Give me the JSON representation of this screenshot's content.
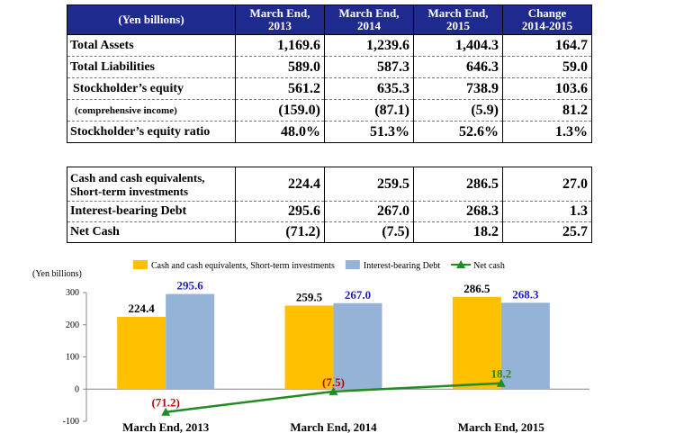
{
  "table1": {
    "headers": [
      "(Yen billions)",
      "March End,\n2013",
      "March End,\n2014",
      "March End,\n2015",
      "Change\n2014-2015"
    ],
    "rows": [
      {
        "label": "Total Assets",
        "values": [
          "1,169.6",
          "1,239.6",
          "1,404.3",
          "164.7"
        ]
      },
      {
        "label": "Total Liabilities",
        "values": [
          "589.0",
          "587.3",
          "646.3",
          "59.0"
        ]
      },
      {
        "label": "Stockholder’s equity",
        "values": [
          "561.2",
          "635.3",
          "738.9",
          "103.6"
        ]
      },
      {
        "label": "(comprehensive income)",
        "values": [
          "(159.0)",
          "(87.1)",
          "(5.9)",
          "81.2"
        ]
      },
      {
        "label": "Stockholder’s equity ratio",
        "values": [
          "48.0%",
          "51.3%",
          "52.6%",
          "1.3%"
        ]
      }
    ]
  },
  "table2": {
    "rows": [
      {
        "label": "Cash and cash equivalents,\nShort-term investments",
        "values": [
          "224.4",
          "259.5",
          "286.5",
          "27.0"
        ]
      },
      {
        "label": "Interest-bearing Debt",
        "values": [
          "295.6",
          "267.0",
          "268.3",
          "1.3"
        ]
      },
      {
        "label": "Net Cash",
        "values": [
          "(71.2)",
          "(7.5)",
          "18.2",
          "25.7"
        ]
      }
    ]
  },
  "chart_data": {
    "type": "bar",
    "ylabel": "(Yen billions)",
    "ylim": [
      -100,
      300
    ],
    "yticks": [
      "300",
      "200",
      "100",
      "0",
      "-100"
    ],
    "categories": [
      "March End, 2013",
      "March End, 2014",
      "March End, 2015"
    ],
    "series": [
      {
        "name": "Cash and cash equivalents,  Short-term investments",
        "type": "bar",
        "color": "#ffc000",
        "values": [
          224.4,
          259.5,
          286.5
        ],
        "labels": [
          "224.4",
          "259.5",
          "286.5"
        ],
        "label_color": "#000000"
      },
      {
        "name": "Interest-bearing Debt",
        "type": "bar",
        "color": "#95b3d7",
        "values": [
          295.6,
          267.0,
          268.3
        ],
        "labels": [
          "295.6",
          "267.0",
          "268.3"
        ],
        "label_color": "#1f1fbf"
      },
      {
        "name": "Net cash",
        "type": "line",
        "color": "#228b22",
        "values": [
          -71.2,
          -7.5,
          18.2
        ],
        "labels": [
          "(71.2)",
          "(7.5)",
          "18.2"
        ],
        "label_colors": [
          "#c00000",
          "#c00000",
          "#228b22"
        ]
      }
    ],
    "legend": "top",
    "grid": false
  }
}
